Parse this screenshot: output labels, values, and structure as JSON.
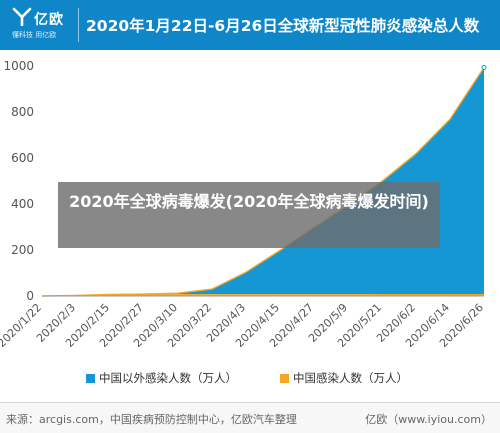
{
  "header": {
    "logo_text": "亿欧",
    "logo_subtitle": "懂科技 用亿欧",
    "title": "2020年1月22日-6月26日全球新型冠性肺炎感染总人数"
  },
  "overlay_text": "2020年全球病毒爆发(2020年全球病毒爆发时间)",
  "footer": {
    "source": "来源：arcgis.com，中国疾病预防控制中心，亿欧汽车整理",
    "site": "亿欧（www.iyiou.com）"
  },
  "colors": {
    "brand": "#0e86c8",
    "area_outside_china": "#1597d3",
    "area_china": "#f5a623"
  },
  "chart_data": {
    "type": "area",
    "x_ticks": [
      "2020/1/22",
      "2020/2/3",
      "2020/2/15",
      "2020/2/27",
      "2020/3/10",
      "2020/3/22",
      "2020/4/3",
      "2020/4/15",
      "2020/4/27",
      "2020/5/9",
      "2020/5/21",
      "2020/6/2",
      "2020/6/14",
      "2020/6/26"
    ],
    "y_ticks": [
      0,
      200,
      400,
      600,
      800,
      1000
    ],
    "ylim": [
      0,
      1000
    ],
    "grid": false,
    "legend_position": "bottom",
    "series": [
      {
        "name": "中国以外感染人数（万人）",
        "color": "#1597d3",
        "points": [
          [
            "2020/1/22",
            0
          ],
          [
            "2020/2/3",
            0
          ],
          [
            "2020/2/15",
            0
          ],
          [
            "2020/2/27",
            0.3
          ],
          [
            "2020/3/10",
            4
          ],
          [
            "2020/3/22",
            22
          ],
          [
            "2020/4/3",
            95
          ],
          [
            "2020/4/15",
            190
          ],
          [
            "2020/4/27",
            290
          ],
          [
            "2020/5/9",
            385
          ],
          [
            "2020/5/21",
            490
          ],
          [
            "2020/6/2",
            610
          ],
          [
            "2020/6/14",
            760
          ],
          [
            "2020/6/26",
            985
          ]
        ]
      },
      {
        "name": "中国感染人数（万人）",
        "color": "#f5a623",
        "points": [
          [
            "2020/1/22",
            0.06
          ],
          [
            "2020/2/3",
            2
          ],
          [
            "2020/2/15",
            6.8
          ],
          [
            "2020/2/27",
            7.9
          ],
          [
            "2020/3/10",
            8.1
          ],
          [
            "2020/3/22",
            8.2
          ],
          [
            "2020/4/3",
            8.3
          ],
          [
            "2020/4/15",
            8.4
          ],
          [
            "2020/4/27",
            8.4
          ],
          [
            "2020/5/9",
            8.4
          ],
          [
            "2020/5/21",
            8.5
          ],
          [
            "2020/6/2",
            8.5
          ],
          [
            "2020/6/14",
            8.5
          ],
          [
            "2020/6/26",
            8.5
          ]
        ]
      }
    ]
  }
}
